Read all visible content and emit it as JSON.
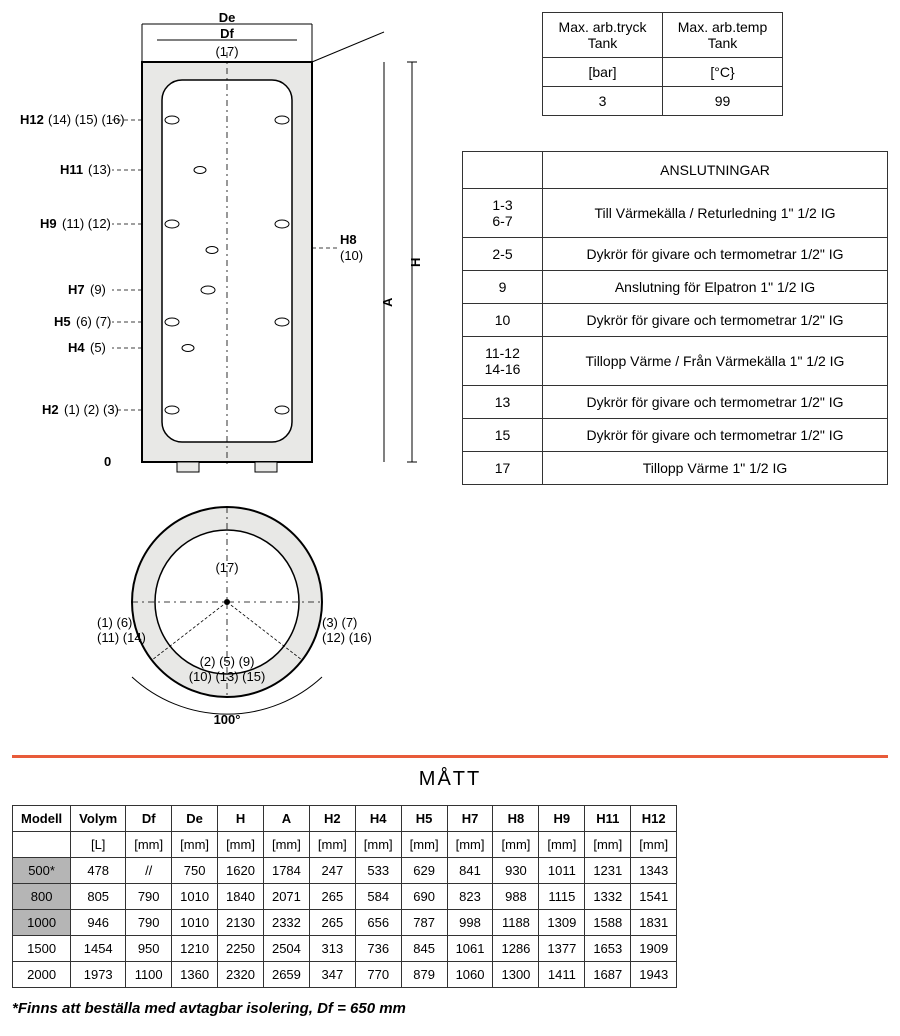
{
  "spec_table": {
    "headers": [
      "Max. arb.tryck\nTank",
      "Max. arb.temp\nTank"
    ],
    "units": [
      "[bar]",
      "[°C}"
    ],
    "values": [
      "3",
      "99"
    ]
  },
  "connections": {
    "title": "ANSLUTNINGAR",
    "rows": [
      {
        "ids": [
          "1-3",
          "6-7"
        ],
        "desc": "Till Värmekälla / Returledning 1\" 1/2 IG"
      },
      {
        "ids": [
          "2-5"
        ],
        "desc": "Dykrör för givare och termometrar 1/2\" IG"
      },
      {
        "ids": [
          "9"
        ],
        "desc": "Anslutning för Elpatron 1\" 1/2 IG"
      },
      {
        "ids": [
          "10"
        ],
        "desc": "Dykrör för givare och termometrar 1/2\" IG"
      },
      {
        "ids": [
          "11-12",
          "14-16"
        ],
        "desc": "Tillopp Värme / Från Värmekälla 1\" 1/2 IG"
      },
      {
        "ids": [
          "13"
        ],
        "desc": "Dykrör för givare och termometrar 1/2\" IG"
      },
      {
        "ids": [
          "15"
        ],
        "desc": "Dykrör för givare och termometrar 1/2\" IG"
      },
      {
        "ids": [
          "17"
        ],
        "desc": "Tillopp Värme 1\" 1/2 IG"
      }
    ]
  },
  "dimensions": {
    "title": "MÅTT",
    "columns": [
      "Modell",
      "Volym",
      "Df",
      "De",
      "H",
      "A",
      "H2",
      "H4",
      "H5",
      "H7",
      "H8",
      "H9",
      "H11",
      "H12"
    ],
    "units": [
      "",
      "[L]",
      "[mm]",
      "[mm]",
      "[mm]",
      "[mm]",
      "[mm]",
      "[mm]",
      "[mm]",
      "[mm]",
      "[mm]",
      "[mm]",
      "[mm]",
      "[mm]"
    ],
    "rows": [
      {
        "shaded": true,
        "cells": [
          "500*",
          "478",
          "//",
          "750",
          "1620",
          "1784",
          "247",
          "533",
          "629",
          "841",
          "930",
          "1011",
          "1231",
          "1343"
        ]
      },
      {
        "shaded": true,
        "cells": [
          "800",
          "805",
          "790",
          "1010",
          "1840",
          "2071",
          "265",
          "584",
          "690",
          "823",
          "988",
          "1115",
          "1332",
          "1541"
        ]
      },
      {
        "shaded": true,
        "cells": [
          "1000",
          "946",
          "790",
          "1010",
          "2130",
          "2332",
          "265",
          "656",
          "787",
          "998",
          "1188",
          "1309",
          "1588",
          "1831"
        ]
      },
      {
        "shaded": false,
        "cells": [
          "1500",
          "1454",
          "950",
          "1210",
          "2250",
          "2504",
          "313",
          "736",
          "845",
          "1061",
          "1286",
          "1377",
          "1653",
          "1909"
        ]
      },
      {
        "shaded": false,
        "cells": [
          "2000",
          "1973",
          "1100",
          "1360",
          "2320",
          "2659",
          "347",
          "770",
          "879",
          "1060",
          "1300",
          "1411",
          "1687",
          "1943"
        ]
      }
    ]
  },
  "footnote": "*Finns att beställa med avtagbar isolering, Df = 650 mm",
  "diagram": {
    "labels": {
      "De": "De",
      "Df": "Df",
      "top17": "(17)",
      "H12": "H12",
      "H12n": "(14) (15) (16)",
      "H11": "H11",
      "H11n": "(13)",
      "H9": "H9",
      "H9n": "(11) (12)",
      "H8": "H8",
      "H8n": "(10)",
      "H7": "H7",
      "H7n": "(9)",
      "H5": "H5",
      "H5n": "(6) (7)",
      "H4": "H4",
      "H4n": "(5)",
      "H2": "H2",
      "H2n": "(1) (2) (3)",
      "zero": "0",
      "H": "H",
      "A": "A",
      "plan17": "(17)",
      "leftA": "(1) (6)",
      "leftB": "(11) (14)",
      "rightA": "(3) (7)",
      "rightB": "(12) (16)",
      "botA": "(2) (5) (9)",
      "botB": "(10) (13) (15)",
      "angle": "100°"
    },
    "colors": {
      "body_fill": "#e8e8e6",
      "ring_fill": "#e8e8e6",
      "stroke": "#000000"
    }
  }
}
